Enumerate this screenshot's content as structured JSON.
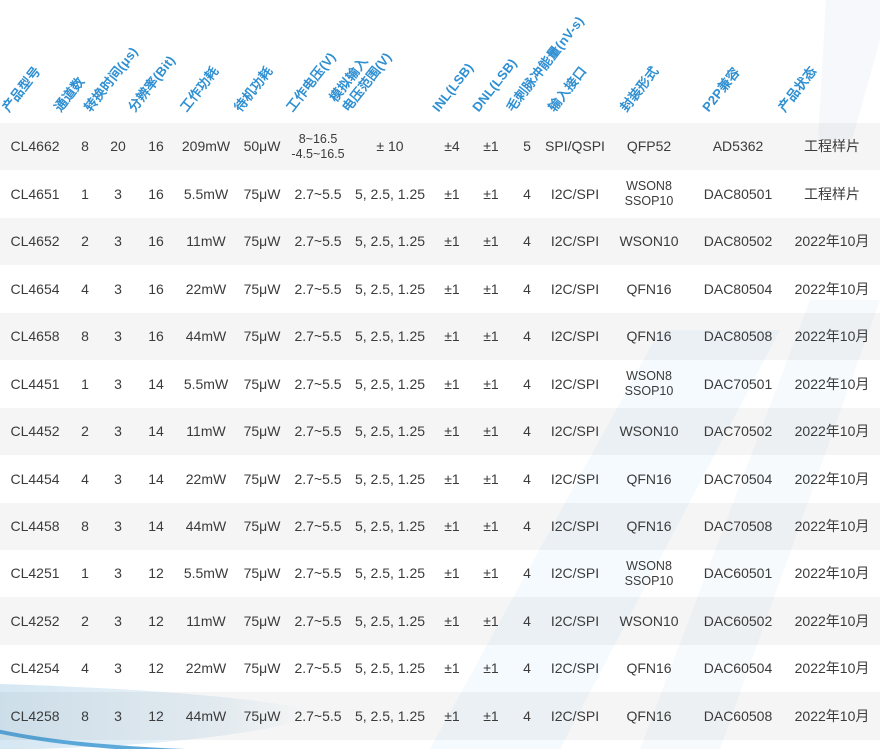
{
  "colors": {
    "header_text": "#2e8fd2",
    "body_text": "#3b3b3b",
    "row_stripe": "#f4f4f6",
    "wave_fill": "#d5e7f2",
    "wave_stroke": "#4aa0d6"
  },
  "table": {
    "columns": [
      {
        "key": "product",
        "label": "产品型号"
      },
      {
        "key": "channels",
        "label": "通道数"
      },
      {
        "key": "conversion_time",
        "label": "转换时间(μs)"
      },
      {
        "key": "resolution",
        "label": "分辨率(Bit)"
      },
      {
        "key": "active_power",
        "label": "工作功耗"
      },
      {
        "key": "standby_power",
        "label": "待机功耗"
      },
      {
        "key": "supply_voltage",
        "label": "工作电压(V)"
      },
      {
        "key": "analog_range",
        "label": "模拟输入\n电压范围(V)"
      },
      {
        "key": "inl",
        "label": "INL(LSB)"
      },
      {
        "key": "dnl",
        "label": "DNL(LSB)"
      },
      {
        "key": "glitch_energy",
        "label": "毛刺脉冲能量(nV-s)"
      },
      {
        "key": "interface",
        "label": "输入接口"
      },
      {
        "key": "package",
        "label": "封装形式"
      },
      {
        "key": "p2p",
        "label": "P2P兼容"
      },
      {
        "key": "status",
        "label": "产品状态"
      }
    ],
    "rows": [
      {
        "cells": [
          "CL4662",
          "8",
          "20",
          "16",
          "209mW",
          "50μW",
          "8~16.5\n-4.5~16.5",
          "± 10",
          "±4",
          "±1",
          "5",
          "SPI/QSPI",
          "QFP52",
          "AD5362",
          "工程样片"
        ]
      },
      {
        "cells": [
          "CL4651",
          "1",
          "3",
          "16",
          "5.5mW",
          "75μW",
          "2.7~5.5",
          "5, 2.5, 1.25",
          "±1",
          "±1",
          "4",
          "I2C/SPI",
          "WSON8\nSSOP10",
          "DAC80501",
          "工程样片"
        ]
      },
      {
        "cells": [
          "CL4652",
          "2",
          "3",
          "16",
          "11mW",
          "75μW",
          "2.7~5.5",
          "5, 2.5, 1.25",
          "±1",
          "±1",
          "4",
          "I2C/SPI",
          "WSON10",
          "DAC80502",
          "2022年10月"
        ]
      },
      {
        "cells": [
          "CL4654",
          "4",
          "3",
          "16",
          "22mW",
          "75μW",
          "2.7~5.5",
          "5, 2.5, 1.25",
          "±1",
          "±1",
          "4",
          "I2C/SPI",
          "QFN16",
          "DAC80504",
          "2022年10月"
        ]
      },
      {
        "cells": [
          "CL4658",
          "8",
          "3",
          "16",
          "44mW",
          "75μW",
          "2.7~5.5",
          "5, 2.5, 1.25",
          "±1",
          "±1",
          "4",
          "I2C/SPI",
          "QFN16",
          "DAC80508",
          "2022年10月"
        ]
      },
      {
        "cells": [
          "CL4451",
          "1",
          "3",
          "14",
          "5.5mW",
          "75μW",
          "2.7~5.5",
          "5, 2.5, 1.25",
          "±1",
          "±1",
          "4",
          "I2C/SPI",
          "WSON8\nSSOP10",
          "DAC70501",
          "2022年10月"
        ]
      },
      {
        "cells": [
          "CL4452",
          "2",
          "3",
          "14",
          "11mW",
          "75μW",
          "2.7~5.5",
          "5, 2.5, 1.25",
          "±1",
          "±1",
          "4",
          "I2C/SPI",
          "WSON10",
          "DAC70502",
          "2022年10月"
        ]
      },
      {
        "cells": [
          "CL4454",
          "4",
          "3",
          "14",
          "22mW",
          "75μW",
          "2.7~5.5",
          "5, 2.5, 1.25",
          "±1",
          "±1",
          "4",
          "I2C/SPI",
          "QFN16",
          "DAC70504",
          "2022年10月"
        ]
      },
      {
        "cells": [
          "CL4458",
          "8",
          "3",
          "14",
          "44mW",
          "75μW",
          "2.7~5.5",
          "5, 2.5, 1.25",
          "±1",
          "±1",
          "4",
          "I2C/SPI",
          "QFN16",
          "DAC70508",
          "2022年10月"
        ]
      },
      {
        "cells": [
          "CL4251",
          "1",
          "3",
          "12",
          "5.5mW",
          "75μW",
          "2.7~5.5",
          "5, 2.5, 1.25",
          "±1",
          "±1",
          "4",
          "I2C/SPI",
          "WSON8\nSSOP10",
          "DAC60501",
          "2022年10月"
        ]
      },
      {
        "cells": [
          "CL4252",
          "2",
          "3",
          "12",
          "11mW",
          "75μW",
          "2.7~5.5",
          "5, 2.5, 1.25",
          "±1",
          "±1",
          "4",
          "I2C/SPI",
          "WSON10",
          "DAC60502",
          "2022年10月"
        ]
      },
      {
        "cells": [
          "CL4254",
          "4",
          "3",
          "12",
          "22mW",
          "75μW",
          "2.7~5.5",
          "5, 2.5, 1.25",
          "±1",
          "±1",
          "4",
          "I2C/SPI",
          "QFN16",
          "DAC60504",
          "2022年10月"
        ]
      },
      {
        "cells": [
          "CL4258",
          "8",
          "3",
          "12",
          "44mW",
          "75μW",
          "2.7~5.5",
          "5, 2.5, 1.25",
          "±1",
          "±1",
          "4",
          "I2C/SPI",
          "QFN16",
          "DAC60508",
          "2022年10月"
        ]
      }
    ]
  }
}
